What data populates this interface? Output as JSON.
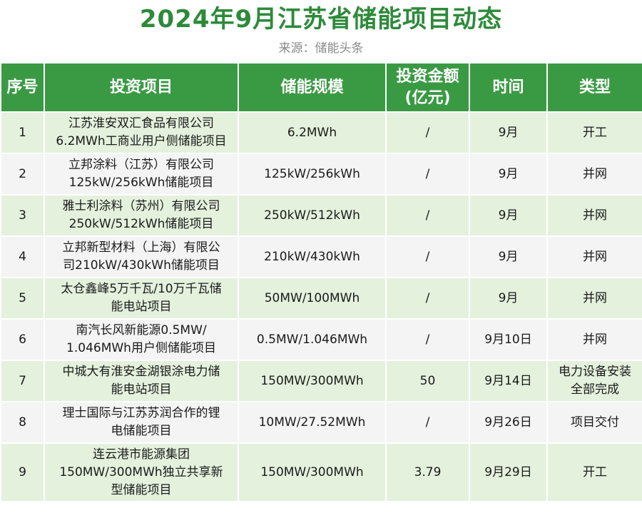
{
  "title": "2024年9月江苏省储能项目动态",
  "source": "来源：储能头条",
  "colors": {
    "title": "#2d8a3a",
    "header_bg": "#3a9a44",
    "row_odd": "#e4f1dd",
    "row_even": "#f4f4f4"
  },
  "headers": {
    "no": "序号",
    "project": "投资项目",
    "scale": "储能规模",
    "amount_l1": "投资金额",
    "amount_l2": "(亿元)",
    "time": "时间",
    "type": "类型"
  },
  "rows": [
    {
      "no": "1",
      "project": [
        "江苏淮安双汇食品有限公司",
        "6.2MWh工商业用户侧储能项目"
      ],
      "scale": "6.2MWh",
      "amount": "/",
      "time": "9月",
      "type": [
        "开工"
      ]
    },
    {
      "no": "2",
      "project": [
        "立邦涂料（江苏）有限公司",
        "125kW/256kWh储能项目"
      ],
      "scale": "125kW/256kWh",
      "amount": "/",
      "time": "9月",
      "type": [
        "并网"
      ]
    },
    {
      "no": "3",
      "project": [
        "雅士利涂料（苏州）有限公司",
        "250kW/512kWh储能项目"
      ],
      "scale": "250kW/512kWh",
      "amount": "/",
      "time": "9月",
      "type": [
        "并网"
      ]
    },
    {
      "no": "4",
      "project": [
        "立邦新型材料（上海）有限公",
        "司210kW/430kWh储能项目"
      ],
      "scale": "210kW/430kWh",
      "amount": "/",
      "time": "9月",
      "type": [
        "并网"
      ]
    },
    {
      "no": "5",
      "project": [
        "太仓鑫峰5万千瓦/10万千瓦储",
        "能电站项目"
      ],
      "scale": "50MW/100MWh",
      "amount": "/",
      "time": "9月",
      "type": [
        "并网"
      ]
    },
    {
      "no": "6",
      "project": [
        "南汽长风新能源0.5MW/",
        "1.046MWh用户侧储能项目"
      ],
      "scale": "0.5MW/1.046MWh",
      "amount": "/",
      "time": "9月10日",
      "type": [
        "并网"
      ]
    },
    {
      "no": "7",
      "project": [
        "中城大有淮安金湖银涂电力储",
        "能电站项目"
      ],
      "scale": "150MW/300MWh",
      "amount": "50",
      "time": "9月14日",
      "type": [
        "电力设备安装",
        "全部完成"
      ]
    },
    {
      "no": "8",
      "project": [
        "理士国际与江苏苏润合作的锂",
        "电储能项目"
      ],
      "scale": "10MW/27.52MWh",
      "amount": "/",
      "time": "9月26日",
      "type": [
        "项目交付"
      ]
    },
    {
      "no": "9",
      "project": [
        "连云港市能源集团",
        "150MW/300MWh独立共享新",
        "型储能项目"
      ],
      "scale": "150MW/300MWh",
      "amount": "3.79",
      "time": "9月29日",
      "type": [
        "开工"
      ]
    }
  ]
}
